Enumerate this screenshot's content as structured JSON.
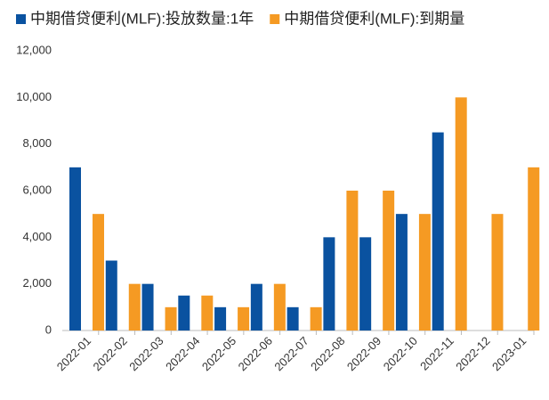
{
  "chart_data": {
    "type": "bar",
    "categories": [
      "2022-01",
      "2022-02",
      "2022-03",
      "2022-04",
      "2022-05",
      "2022-06",
      "2022-07",
      "2022-08",
      "2022-09",
      "2022-10",
      "2022-11",
      "2022-12",
      "2023-01"
    ],
    "series": [
      {
        "name": "中期借贷便利(MLF):投放数量:1年",
        "color": "#0a52a0",
        "values": [
          7000,
          3000,
          2000,
          1500,
          1000,
          2000,
          1000,
          4000,
          4000,
          5000,
          8500,
          null,
          null
        ]
      },
      {
        "name": "中期借贷便利(MLF):到期量",
        "color": "#f59a23",
        "values": [
          5000,
          2000,
          1000,
          1500,
          1000,
          2000,
          1000,
          6000,
          6000,
          5000,
          10000,
          5000,
          7000
        ]
      }
    ],
    "ylim": [
      0,
      12000
    ],
    "yticks": [
      0,
      {
        "value": 2000,
        "label": "2,000"
      },
      {
        "value": 4000,
        "label": "4,000"
      },
      {
        "value": 6000,
        "label": "6,000"
      },
      {
        "value": 8000,
        "label": "8,000"
      },
      {
        "value": 10000,
        "label": "10,000"
      },
      {
        "value": 12000,
        "label": "12,000"
      }
    ],
    "grid": false,
    "legend": "top"
  }
}
